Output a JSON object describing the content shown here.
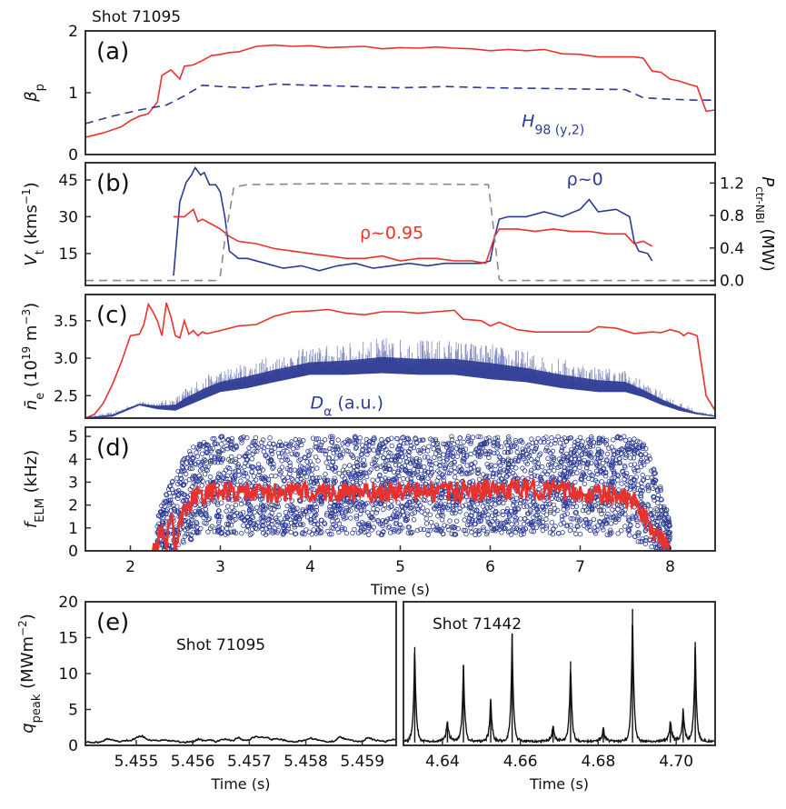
{
  "figure": {
    "shot_label_top": "Shot 71095",
    "shared_xlabel": "Time (s)"
  },
  "colors": {
    "red": "#e8322e",
    "blue": "#2b3a94",
    "gray_dash": "#8a8a8a",
    "black": "#111111"
  },
  "chart_data": [
    {
      "id": "a",
      "type": "line",
      "panel_tag": "(a)",
      "ylabel": "β_p",
      "ylabel_main": "β",
      "ylabel_sub": "p",
      "xlim": [
        1.5,
        8.5
      ],
      "ylim": [
        0,
        2
      ],
      "yticks": [
        0,
        1,
        2
      ],
      "yticklabels": [
        "0",
        "1",
        "2"
      ],
      "series": [
        {
          "name": "beta_p",
          "style": "solid",
          "color": "red",
          "x": [
            1.5,
            1.7,
            1.9,
            2.0,
            2.1,
            2.2,
            2.3,
            2.35,
            2.45,
            2.55,
            2.6,
            2.7,
            2.8,
            2.9,
            3.0,
            3.1,
            3.2,
            3.4,
            3.6,
            3.8,
            4.0,
            4.2,
            4.4,
            4.6,
            4.8,
            5.0,
            5.2,
            5.4,
            5.6,
            5.8,
            6.0,
            6.2,
            6.4,
            6.6,
            6.8,
            7.0,
            7.2,
            7.4,
            7.6,
            7.7,
            7.8,
            7.9,
            8.0,
            8.1,
            8.2,
            8.3,
            8.35,
            8.4,
            8.5
          ],
          "y": [
            0.28,
            0.35,
            0.45,
            0.55,
            0.62,
            0.66,
            0.85,
            1.28,
            1.37,
            1.22,
            1.43,
            1.45,
            1.52,
            1.6,
            1.62,
            1.65,
            1.66,
            1.75,
            1.77,
            1.75,
            1.76,
            1.73,
            1.74,
            1.75,
            1.71,
            1.73,
            1.72,
            1.74,
            1.72,
            1.71,
            1.68,
            1.7,
            1.68,
            1.7,
            1.63,
            1.62,
            1.58,
            1.58,
            1.58,
            1.56,
            1.35,
            1.33,
            1.22,
            1.19,
            1.14,
            1.1,
            0.9,
            0.7,
            0.72
          ]
        },
        {
          "name": "H98(y,2)",
          "style": "dashed",
          "color": "blue",
          "x": [
            1.5,
            1.8,
            2.1,
            2.4,
            2.6,
            2.8,
            3.0,
            3.3,
            3.6,
            4.0,
            4.5,
            5.0,
            5.5,
            6.0,
            6.5,
            7.0,
            7.5,
            7.7,
            7.9,
            8.3,
            8.5
          ],
          "y": [
            0.5,
            0.62,
            0.72,
            0.8,
            0.95,
            1.12,
            1.1,
            1.08,
            1.14,
            1.12,
            1.1,
            1.08,
            1.1,
            1.08,
            1.07,
            1.06,
            1.05,
            0.92,
            0.9,
            0.88,
            0.88
          ]
        }
      ],
      "annotations": [
        {
          "text_main": "H",
          "text_sub": "98 (y,2)",
          "color": "blue",
          "x": 6.35,
          "y": 0.45
        }
      ]
    },
    {
      "id": "b",
      "type": "line",
      "panel_tag": "(b)",
      "ylabel_main": "V",
      "ylabel_sub": "t",
      "ylabel_unit": " (kms",
      "ylabel_sup": "−1",
      "ylabel_close": ")",
      "xlim": [
        1.5,
        8.5
      ],
      "ylim": [
        2,
        52
      ],
      "yticks": [
        15,
        30,
        45
      ],
      "yticklabels": [
        "15",
        "30",
        "45"
      ],
      "y2label_main": "P",
      "y2label_sub": "ctr-NBI",
      "y2label_unit": " (MW)",
      "y2lim": [
        -0.06,
        1.45
      ],
      "y2ticks": [
        0.0,
        0.4,
        0.8,
        1.2
      ],
      "y2ticklabels": [
        "0.0",
        "0.4",
        "0.8",
        "1.2"
      ],
      "series": [
        {
          "name": "rho~0",
          "style": "solid",
          "color": "blue",
          "axis": "left",
          "x": [
            2.48,
            2.55,
            2.62,
            2.68,
            2.72,
            2.78,
            2.82,
            2.88,
            2.95,
            3.0,
            3.05,
            3.1,
            3.2,
            3.3,
            3.5,
            3.7,
            3.9,
            4.1,
            4.3,
            4.5,
            4.7,
            4.9,
            5.1,
            5.3,
            5.5,
            5.7,
            5.9,
            6.0,
            6.05,
            6.1,
            6.2,
            6.4,
            6.6,
            6.8,
            7.0,
            7.1,
            7.2,
            7.4,
            7.55,
            7.6,
            7.65,
            7.75,
            7.8
          ],
          "y": [
            6,
            36,
            44,
            47,
            50,
            47,
            48,
            43,
            43,
            40,
            30,
            16,
            13,
            13,
            11,
            9,
            10,
            8,
            10,
            11,
            9,
            10,
            11,
            10,
            11,
            11,
            11,
            12,
            22,
            29,
            30,
            30,
            32,
            30,
            33,
            37,
            32,
            33,
            30,
            20,
            16,
            15,
            12
          ]
        },
        {
          "name": "rho~0.95",
          "style": "solid",
          "color": "red",
          "axis": "left",
          "x": [
            2.48,
            2.6,
            2.7,
            2.75,
            2.8,
            2.9,
            3.0,
            3.1,
            3.2,
            3.4,
            3.6,
            3.8,
            4.0,
            4.2,
            4.4,
            4.6,
            4.8,
            5.0,
            5.2,
            5.4,
            5.6,
            5.8,
            5.95,
            6.05,
            6.1,
            6.3,
            6.5,
            6.7,
            6.9,
            7.1,
            7.3,
            7.5,
            7.55,
            7.6,
            7.7,
            7.8
          ],
          "y": [
            30,
            30,
            33,
            28,
            29,
            27,
            25,
            22,
            20,
            19,
            17,
            16,
            15,
            14,
            13,
            13,
            14,
            12,
            13,
            13,
            12,
            12,
            11,
            22,
            25,
            25,
            24,
            25,
            24,
            24,
            23,
            23,
            21,
            19,
            20,
            18
          ]
        },
        {
          "name": "P_ctr-NBI",
          "style": "dashed",
          "color": "gray_dash",
          "axis": "right",
          "x": [
            1.5,
            2.95,
            3.0,
            3.05,
            3.15,
            3.3,
            4.0,
            5.0,
            5.98,
            6.02,
            6.1,
            6.12,
            8.5
          ],
          "y2": [
            0.0,
            0.0,
            0.06,
            0.5,
            1.15,
            1.18,
            1.19,
            1.19,
            1.18,
            0.8,
            0.02,
            0.0,
            0.0
          ]
        }
      ],
      "annotations": [
        {
          "text": "ρ~0.95",
          "color": "red",
          "x": 4.55,
          "y": 21
        },
        {
          "text": "ρ~0",
          "color": "blue",
          "x": 6.85,
          "y": 43
        }
      ]
    },
    {
      "id": "c",
      "type": "line",
      "panel_tag": "(c)",
      "ylabel_main": "n̄",
      "ylabel_sub": "e",
      "ylabel_unit": " (10",
      "ylabel_sup": "19",
      "ylabel_unit2": " m",
      "ylabel_sup2": "−3",
      "ylabel_close": ")",
      "xlim": [
        1.5,
        8.5
      ],
      "ylim": [
        2.2,
        3.85
      ],
      "yticks": [
        2.5,
        3.0,
        3.5
      ],
      "yticklabels": [
        "2.5",
        "3.0",
        "3.5"
      ],
      "series": [
        {
          "name": "n_e",
          "style": "solid",
          "color": "red",
          "x": [
            1.5,
            1.6,
            1.7,
            1.8,
            1.9,
            2.0,
            2.1,
            2.15,
            2.2,
            2.25,
            2.3,
            2.35,
            2.4,
            2.45,
            2.5,
            2.55,
            2.6,
            2.65,
            2.7,
            2.75,
            2.8,
            2.85,
            2.9,
            3.0,
            3.2,
            3.4,
            3.6,
            3.8,
            4.0,
            4.2,
            4.4,
            4.6,
            4.8,
            5.0,
            5.2,
            5.4,
            5.6,
            5.7,
            5.9,
            6.0,
            6.1,
            6.3,
            6.5,
            6.7,
            6.9,
            7.1,
            7.2,
            7.4,
            7.6,
            7.8,
            7.9,
            8.0,
            8.1,
            8.15,
            8.2,
            8.3,
            8.4,
            8.5
          ],
          "y": [
            2.2,
            2.25,
            2.4,
            2.65,
            2.95,
            3.3,
            3.32,
            3.45,
            3.72,
            3.62,
            3.5,
            3.3,
            3.74,
            3.55,
            3.3,
            3.27,
            3.5,
            3.32,
            3.37,
            3.3,
            3.35,
            3.33,
            3.34,
            3.37,
            3.43,
            3.45,
            3.56,
            3.62,
            3.63,
            3.65,
            3.6,
            3.58,
            3.62,
            3.62,
            3.6,
            3.62,
            3.64,
            3.52,
            3.5,
            3.43,
            3.48,
            3.38,
            3.35,
            3.35,
            3.35,
            3.35,
            3.42,
            3.4,
            3.33,
            3.35,
            3.34,
            3.38,
            3.35,
            3.3,
            3.34,
            3.3,
            2.5,
            2.3
          ]
        },
        {
          "name": "D_alpha",
          "style": "band",
          "color": "blue",
          "x": [
            1.5,
            1.8,
            2.0,
            2.1,
            2.3,
            2.5,
            2.6,
            2.8,
            3.0,
            3.3,
            3.6,
            4.0,
            4.4,
            4.8,
            5.2,
            5.6,
            6.0,
            6.4,
            6.8,
            7.2,
            7.5,
            7.7,
            7.9,
            8.1,
            8.3,
            8.5
          ],
          "y_low": [
            2.2,
            2.22,
            2.32,
            2.37,
            2.32,
            2.3,
            2.35,
            2.45,
            2.55,
            2.6,
            2.68,
            2.78,
            2.78,
            2.8,
            2.78,
            2.78,
            2.72,
            2.68,
            2.6,
            2.55,
            2.55,
            2.48,
            2.38,
            2.3,
            2.25,
            2.22
          ],
          "y_high": [
            2.22,
            2.28,
            2.38,
            2.42,
            2.42,
            2.48,
            2.6,
            2.75,
            2.85,
            2.95,
            3.05,
            3.15,
            3.2,
            3.28,
            3.25,
            3.25,
            3.2,
            3.1,
            3.0,
            2.9,
            2.85,
            2.7,
            2.55,
            2.42,
            2.3,
            2.25
          ]
        }
      ],
      "annotations": [
        {
          "text_main": "D",
          "text_sub": "α",
          "text_rest": " (a.u.)",
          "color": "blue",
          "x": 4.0,
          "y": 2.33
        }
      ]
    },
    {
      "id": "d",
      "type": "scatter",
      "panel_tag": "(d)",
      "ylabel_main": "f",
      "ylabel_sub": "ELM",
      "ylabel_unit": " (kHz)",
      "xlim": [
        1.5,
        8.5
      ],
      "ylim": [
        0,
        5.4
      ],
      "yticks": [
        0,
        1,
        2,
        3,
        4,
        5
      ],
      "yticklabels": [
        "0",
        "1",
        "2",
        "3",
        "4",
        "5"
      ],
      "xticks": [
        2,
        3,
        4,
        5,
        6,
        7,
        8
      ],
      "xticklabels": [
        "2",
        "3",
        "4",
        "5",
        "6",
        "7",
        "8"
      ],
      "xlabel": "Time (s)",
      "series": [
        {
          "name": "ELM events",
          "style": "open-circle",
          "color": "blue",
          "envelope_x": [
            2.3,
            2.5,
            2.7,
            2.9,
            3.0,
            7.5,
            7.7,
            7.85,
            8.0
          ],
          "envelope_low": [
            0.0,
            0.0,
            0.5,
            0.8,
            0.7,
            0.7,
            0.3,
            0.0,
            0.0
          ],
          "envelope_high": [
            1.5,
            3.5,
            4.6,
            5.0,
            5.0,
            5.0,
            4.8,
            3.5,
            1.2
          ]
        },
        {
          "name": "mean f_ELM",
          "style": "solid",
          "color": "red",
          "x": [
            2.25,
            2.3,
            2.35,
            2.4,
            2.45,
            2.5,
            2.55,
            2.6,
            2.7,
            2.75,
            2.8,
            3.0,
            3.5,
            4.0,
            4.5,
            5.0,
            5.5,
            6.0,
            6.5,
            7.0,
            7.4,
            7.6,
            7.7,
            7.8,
            7.9,
            8.0
          ],
          "y": [
            0.0,
            0.3,
            1.2,
            0.2,
            1.8,
            0.1,
            1.2,
            1.8,
            2.3,
            2.6,
            2.5,
            2.6,
            2.5,
            2.6,
            2.5,
            2.6,
            2.55,
            2.65,
            2.7,
            2.55,
            2.4,
            2.1,
            1.5,
            1.0,
            0.4,
            0.3
          ]
        }
      ]
    },
    {
      "id": "e-left",
      "type": "line",
      "panel_tag": "(e)",
      "annotation": "Shot 71095",
      "ylabel_main": "q",
      "ylabel_sub": "peak",
      "ylabel_unit": " (MWm",
      "ylabel_sup": "−2",
      "ylabel_close": ")",
      "xlabel": "Time (s)",
      "xlim": [
        5.4541,
        5.4596
      ],
      "ylim": [
        0,
        20
      ],
      "yticks": [
        0,
        5,
        10,
        15,
        20
      ],
      "yticklabels": [
        "0",
        "5",
        "10",
        "15",
        "20"
      ],
      "xticks": [
        5.455,
        5.456,
        5.457,
        5.458,
        5.459
      ],
      "xticklabels": [
        "5.455",
        "5.456",
        "5.457",
        "5.458",
        "5.459"
      ],
      "series": [
        {
          "name": "q_peak 71095",
          "style": "solid",
          "color": "black",
          "x": [
            5.4541,
            5.4543,
            5.4544,
            5.4545,
            5.4547,
            5.4548,
            5.4549,
            5.455,
            5.4551,
            5.4552,
            5.4554,
            5.4555,
            5.4557,
            5.4558,
            5.456,
            5.4561,
            5.4562,
            5.4563,
            5.4564,
            5.4565,
            5.4566,
            5.4567,
            5.4568,
            5.4569,
            5.457,
            5.4571,
            5.4572,
            5.4573,
            5.4574,
            5.4575,
            5.4577,
            5.4578,
            5.458,
            5.4581,
            5.4582,
            5.4583,
            5.4584,
            5.4585,
            5.4586,
            5.4587,
            5.4588,
            5.4589,
            5.459,
            5.4591,
            5.4592,
            5.4593,
            5.4594,
            5.4595,
            5.4596
          ],
          "y": [
            0.5,
            0.4,
            0.6,
            0.9,
            0.5,
            0.7,
            0.6,
            1.1,
            1.3,
            0.8,
            0.6,
            0.7,
            0.6,
            0.4,
            0.5,
            0.9,
            0.6,
            0.8,
            0.5,
            0.8,
            0.9,
            0.6,
            1.1,
            0.7,
            0.8,
            1.2,
            1.1,
            1.2,
            0.8,
            0.9,
            0.6,
            0.5,
            0.7,
            1.0,
            0.8,
            0.6,
            0.5,
            0.6,
            1.2,
            0.9,
            0.7,
            0.5,
            0.6,
            1.1,
            0.8,
            0.6,
            0.5,
            0.7,
            0.8
          ]
        }
      ]
    },
    {
      "id": "e-right",
      "type": "line",
      "annotation": "Shot 71442",
      "xlabel": "Time (s)",
      "xlim": [
        4.63,
        4.71
      ],
      "ylim": [
        0,
        20
      ],
      "xticks": [
        4.64,
        4.66,
        4.68,
        4.7
      ],
      "xticklabels": [
        "4.64",
        "4.66",
        "4.68",
        "4.70"
      ],
      "series": [
        {
          "name": "q_peak 71442",
          "style": "spiky",
          "color": "black",
          "baseline": 0.4,
          "peaks_t": [
            4.6329,
            4.6413,
            4.6454,
            4.6524,
            4.6579,
            4.6684,
            4.6729,
            4.6813,
            4.6888,
            4.6985,
            4.7018,
            4.7049
          ],
          "peaks_h": [
            13.3,
            2.5,
            10.8,
            5.8,
            15.2,
            1.8,
            11.3,
            1.5,
            18.6,
            2.8,
            4.2,
            14.0
          ]
        }
      ]
    }
  ]
}
